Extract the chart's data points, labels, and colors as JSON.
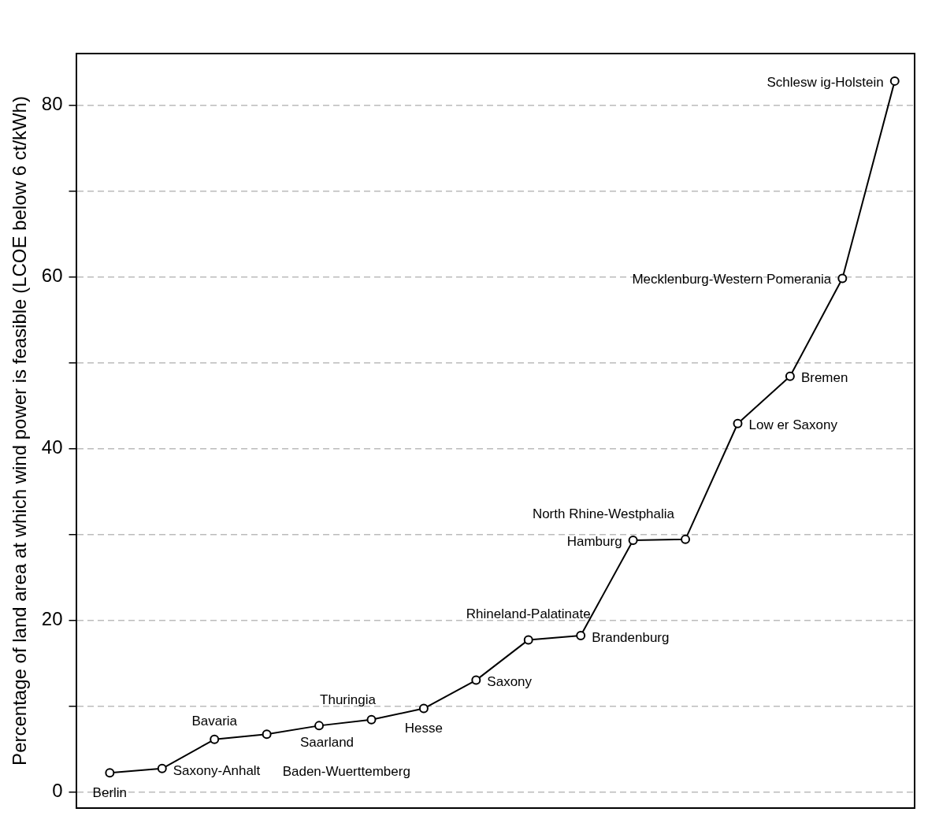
{
  "chart_data": {
    "type": "line",
    "ylabel": "Percentage of land area at which wind power is feasible (LCOE below 6 ct/kWh)",
    "categories": [
      null,
      null,
      null,
      null,
      null,
      null,
      null,
      null,
      null,
      null,
      null,
      null,
      null,
      null,
      null,
      null
    ],
    "series": [
      {
        "color": "#000000",
        "values": [
          2.2,
          2.7,
          6.1,
          6.7,
          7.7,
          8.4,
          9.7,
          13.0,
          17.7,
          18.2,
          29.3,
          29.4,
          42.9,
          48.4,
          59.8,
          82.8
        ]
      }
    ],
    "annotations": [
      "Berlin",
      "Saxony-Anhalt",
      "Bavaria",
      "Baden-Wuerttemberg",
      "Saarland",
      "Thuringia",
      "Hesse",
      "Saxony",
      "Rhineland-Palatinate",
      "Brandenburg",
      "Hamburg",
      "North Rhine-Westphalia",
      "Low er Saxony",
      "Bremen",
      "Mecklenburg-Western Pomerania",
      "Schlesw ig-Holstein"
    ],
    "ylim": [
      -1.9,
      86
    ],
    "yticks": [
      0,
      {
        "value": 10,
        "label": null
      },
      20,
      {
        "value": 30,
        "label": null
      },
      40,
      {
        "value": 50,
        "label": null
      },
      60,
      {
        "value": 70,
        "label": null
      },
      80
    ],
    "grid": "y",
    "tick_labels": "y",
    "marker": "circle",
    "line_style": "solid",
    "legend": false
  }
}
